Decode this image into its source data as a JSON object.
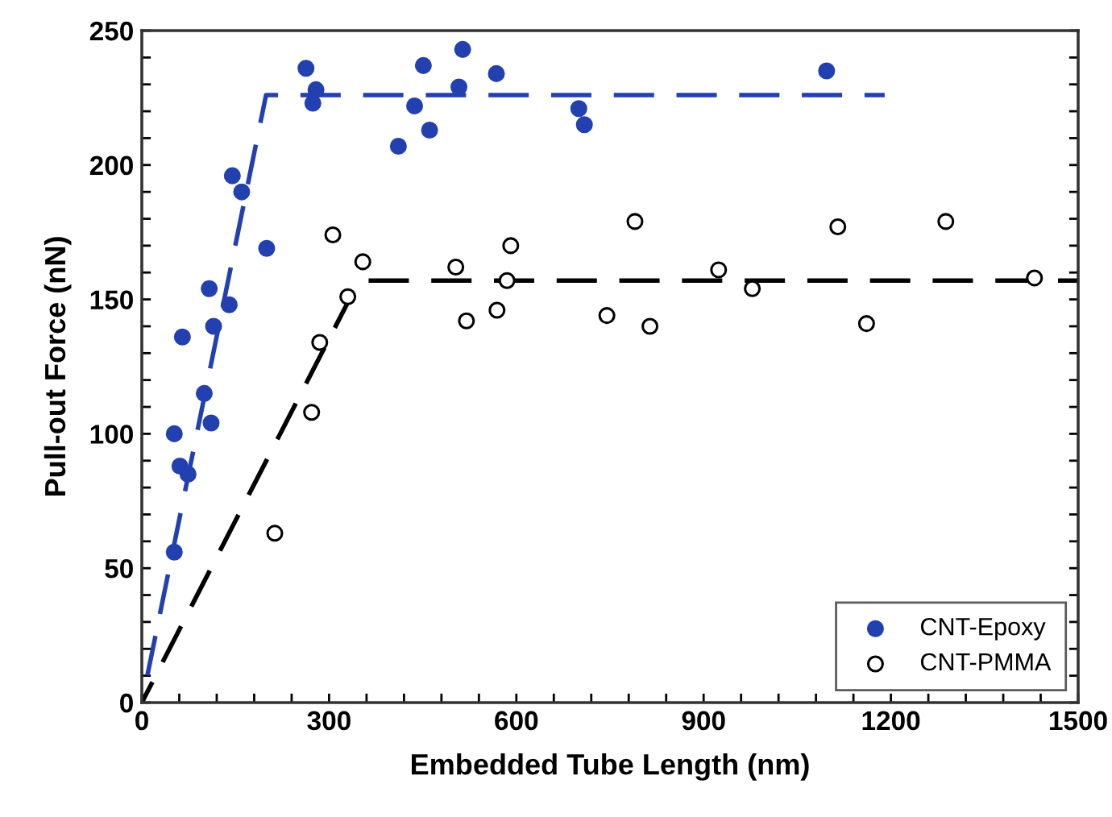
{
  "chart_data": {
    "type": "scatter",
    "xlabel": "Embedded Tube Length (nm)",
    "ylabel": "Pull-out Force (nN)",
    "xlim": [
      0,
      1500
    ],
    "ylim": [
      0,
      250
    ],
    "xticks": [
      0,
      {
        "value": 60,
        "label": null
      },
      {
        "value": 120,
        "label": null
      },
      {
        "value": 180,
        "label": null
      },
      {
        "value": 240,
        "label": null
      },
      300,
      {
        "value": 360,
        "label": null
      },
      {
        "value": 420,
        "label": null
      },
      {
        "value": 480,
        "label": null
      },
      {
        "value": 540,
        "label": null
      },
      600,
      {
        "value": 660,
        "label": null
      },
      {
        "value": 720,
        "label": null
      },
      {
        "value": 780,
        "label": null
      },
      {
        "value": 840,
        "label": null
      },
      900,
      {
        "value": 960,
        "label": null
      },
      {
        "value": 1020,
        "label": null
      },
      {
        "value": 1080,
        "label": null
      },
      {
        "value": 1140,
        "label": null
      },
      1200,
      {
        "value": 1260,
        "label": null
      },
      {
        "value": 1320,
        "label": null
      },
      {
        "value": 1380,
        "label": null
      },
      {
        "value": 1440,
        "label": null
      },
      1500
    ],
    "yticks": [
      0,
      {
        "value": 10,
        "label": null
      },
      {
        "value": 20,
        "label": null
      },
      {
        "value": 30,
        "label": null
      },
      {
        "value": 40,
        "label": null
      },
      50,
      {
        "value": 60,
        "label": null
      },
      {
        "value": 70,
        "label": null
      },
      {
        "value": 80,
        "label": null
      },
      {
        "value": 90,
        "label": null
      },
      100,
      {
        "value": 110,
        "label": null
      },
      {
        "value": 120,
        "label": null
      },
      {
        "value": 130,
        "label": null
      },
      {
        "value": 140,
        "label": null
      },
      150,
      {
        "value": 160,
        "label": null
      },
      {
        "value": 170,
        "label": null
      },
      {
        "value": 180,
        "label": null
      },
      {
        "value": 190,
        "label": null
      },
      200,
      {
        "value": 210,
        "label": null
      },
      {
        "value": 220,
        "label": null
      },
      {
        "value": 230,
        "label": null
      },
      {
        "value": 240,
        "label": null
      },
      250
    ],
    "grid": false,
    "legend": "bottom right",
    "series": [
      {
        "name": "CNT-Epoxy",
        "marker": "circle",
        "color": "#2340b0",
        "x": [
          52,
          52,
          61,
          74,
          65,
          100,
          111,
          108,
          115,
          140,
          145,
          160,
          200,
          263,
          279,
          274,
          411,
          437,
          451,
          461,
          514,
          508,
          568,
          700,
          709,
          1097
        ],
        "values": [
          56,
          100,
          88,
          85,
          136,
          115,
          104,
          154,
          140,
          148,
          196,
          190,
          169,
          236,
          228,
          223,
          207,
          222,
          237,
          213,
          243,
          229,
          234,
          221,
          215,
          235
        ]
      },
      {
        "name": "CNT-PMMA",
        "marker": "circle",
        "color": "#000000",
        "x": [
          213,
          272,
          285,
          306,
          330,
          354,
          503,
          520,
          569,
          585,
          591,
          745,
          790,
          814,
          924,
          978,
          1115,
          1161,
          1288,
          1430
        ],
        "values": [
          63,
          108,
          134,
          174,
          151,
          164,
          162,
          142,
          146,
          157,
          170,
          144,
          179,
          140,
          161,
          154,
          177,
          141,
          179,
          158
        ]
      },
      {
        "type": "line",
        "line_style": "dashed",
        "color": "#2340b0",
        "x": [
          0,
          199,
          1190
        ],
        "values": [
          0,
          226,
          226
        ]
      },
      {
        "type": "line",
        "line_style": "dashed",
        "color": "#000000",
        "x": [
          0,
          348,
          1500
        ],
        "values": [
          0,
          157,
          157
        ]
      }
    ]
  }
}
